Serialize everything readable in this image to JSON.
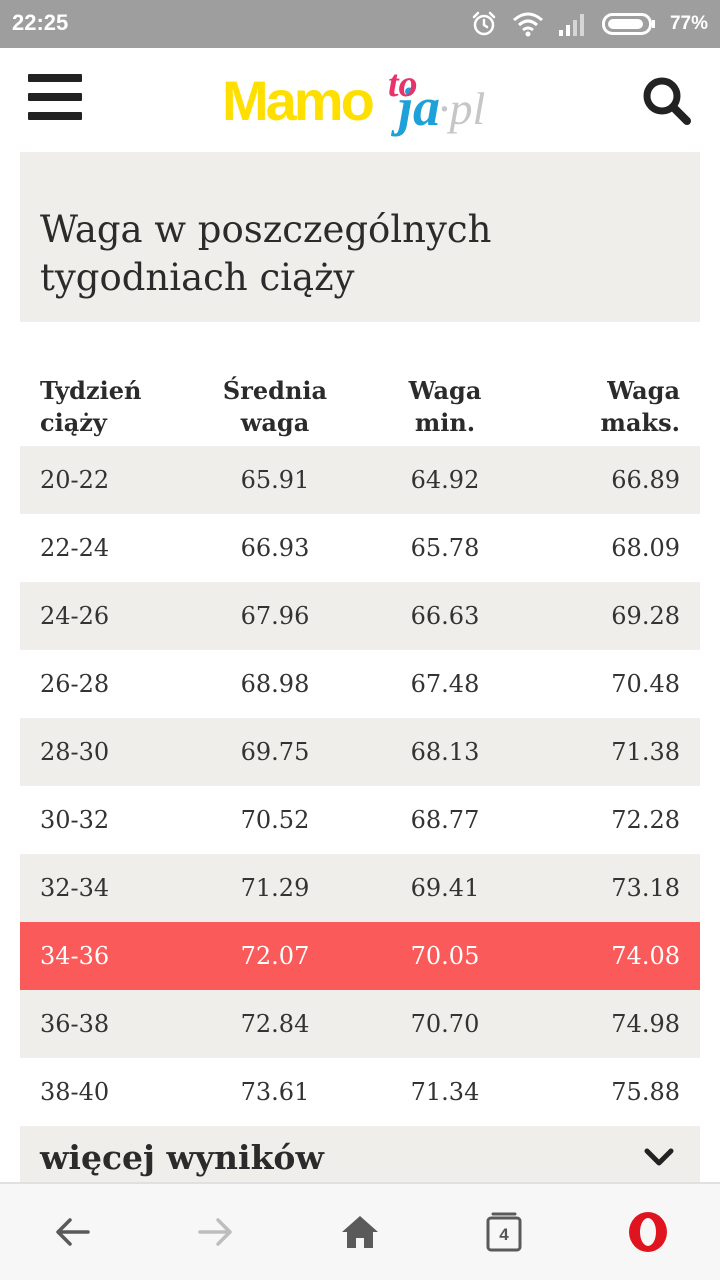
{
  "status_bar": {
    "time": "22:25",
    "battery_percent": "77%",
    "icons": [
      "alarm-icon",
      "wifi-icon",
      "signal-icon",
      "battery-icon"
    ]
  },
  "header": {
    "logo": {
      "main": "Mamo",
      "to": "to",
      "ja": "ja",
      "pl": "·pl"
    },
    "menu_icon": "hamburger-menu-icon",
    "search_icon": "search-icon",
    "colors": {
      "logo_yellow": "#ffdf00",
      "logo_pink": "#e8336a",
      "logo_blue": "#1ea0d8",
      "logo_grey": "#c6c6c6"
    }
  },
  "section": {
    "title": "Waga w poszczególnych tygodniach ciąży"
  },
  "table": {
    "headers": [
      "Tydzień ciąży",
      "Średnia waga",
      "Waga min.",
      "Waga maks."
    ],
    "rows": [
      [
        "20-22",
        "65.91",
        "64.92",
        "66.89"
      ],
      [
        "22-24",
        "66.93",
        "65.78",
        "68.09"
      ],
      [
        "24-26",
        "67.96",
        "66.63",
        "69.28"
      ],
      [
        "26-28",
        "68.98",
        "67.48",
        "70.48"
      ],
      [
        "28-30",
        "69.75",
        "68.13",
        "71.38"
      ],
      [
        "30-32",
        "70.52",
        "68.77",
        "72.28"
      ],
      [
        "32-34",
        "71.29",
        "69.41",
        "73.18"
      ],
      [
        "34-36",
        "72.07",
        "70.05",
        "74.08"
      ],
      [
        "36-38",
        "72.84",
        "70.70",
        "74.98"
      ],
      [
        "38-40",
        "73.61",
        "71.34",
        "75.88"
      ]
    ],
    "highlighted_row": 7,
    "colors": {
      "stripe": "#f0eeea",
      "highlight": "#fb5a5a"
    }
  },
  "more_results": {
    "label": "więcej wyników",
    "icon": "chevron-down-icon"
  },
  "bottom_nav": {
    "items": [
      "back-icon",
      "forward-icon",
      "home-icon",
      "tabs-icon",
      "opera-menu-icon"
    ],
    "tab_count": "4",
    "colors": {
      "opera_red": "#e0141e",
      "icon_grey": "#5a5a5a",
      "disabled_grey": "#bdbdbd"
    }
  }
}
